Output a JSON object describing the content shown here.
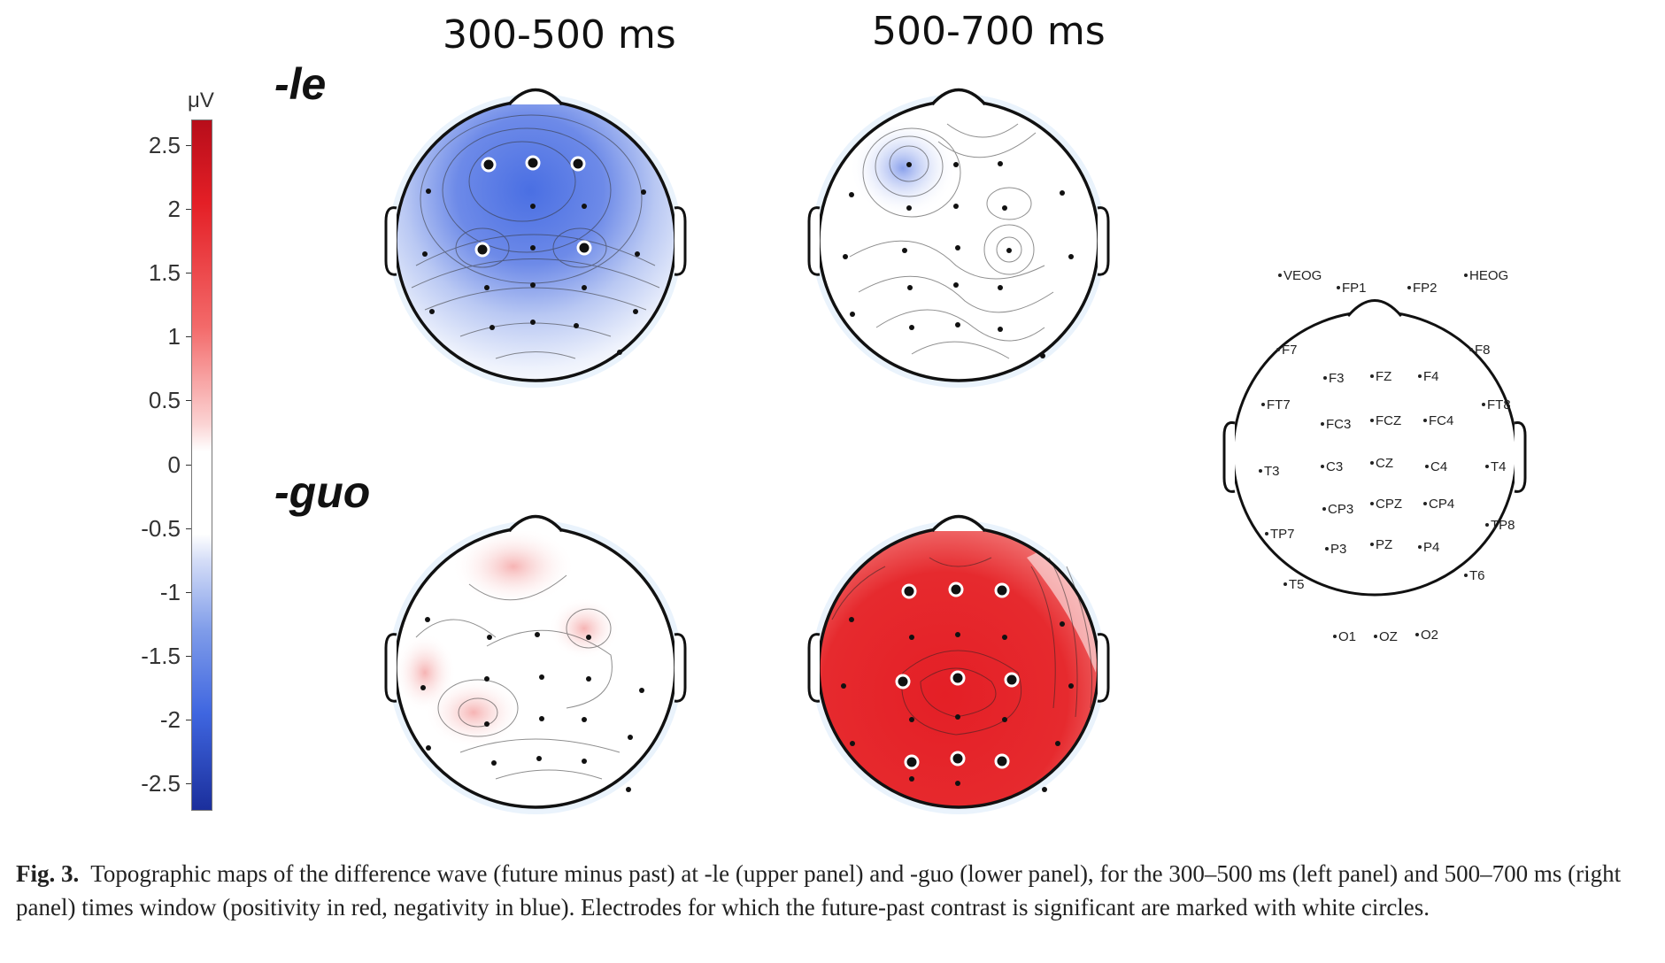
{
  "columns": {
    "left_title": "300-500 ms",
    "right_title": "500-700 ms"
  },
  "rows": {
    "top_label": "-le",
    "bottom_label": "-guo"
  },
  "colorbar": {
    "unit": "μV",
    "ticks": [
      "2.5",
      "2",
      "1.5",
      "1",
      "0.5",
      "0",
      "-0.5",
      "-1",
      "-1.5",
      "-2",
      "-2.5"
    ],
    "range": [
      -2.7,
      2.7
    ],
    "colors": {
      "positive": "#e41f26",
      "negative": "#3f66e0",
      "zero": "#ffffff"
    }
  },
  "electrode_layout": {
    "labels": [
      "VEOG",
      "FP1",
      "FP2",
      "HEOG",
      "F7",
      "F3",
      "FZ",
      "F4",
      "F8",
      "FT7",
      "FC3",
      "FCZ",
      "FC4",
      "FT8",
      "T3",
      "C3",
      "CZ",
      "C4",
      "T4",
      "CP3",
      "CPZ",
      "CP4",
      "TP7",
      "P3",
      "PZ",
      "P4",
      "TP8",
      "T5",
      "T6",
      "O1",
      "OZ",
      "O2"
    ]
  },
  "caption": {
    "label": "Fig. 3.",
    "text": "Topographic maps of the difference wave (future minus past) at -le (upper panel) and -guo (lower panel), for the 300–500 ms (left panel) and 500–700 ms (right panel) times window (positivity in red, negativity in blue). Electrodes for which the future-past contrast is significant are marked with white circles."
  },
  "maps": [
    {
      "condition": "-le",
      "window": "300-500 ms",
      "polarity": "negative",
      "significant_electrodes": [
        "F3",
        "FZ",
        "F4",
        "C3",
        "C4"
      ]
    },
    {
      "condition": "-le",
      "window": "500-700 ms",
      "polarity": "mixed",
      "significant_electrodes": []
    },
    {
      "condition": "-guo",
      "window": "300-500 ms",
      "polarity": "weak positive",
      "significant_electrodes": []
    },
    {
      "condition": "-guo",
      "window": "500-700 ms",
      "polarity": "positive",
      "significant_electrodes": [
        "F3",
        "FZ",
        "F4",
        "C3",
        "CZ",
        "C4",
        "P3",
        "PZ",
        "P4"
      ]
    }
  ]
}
